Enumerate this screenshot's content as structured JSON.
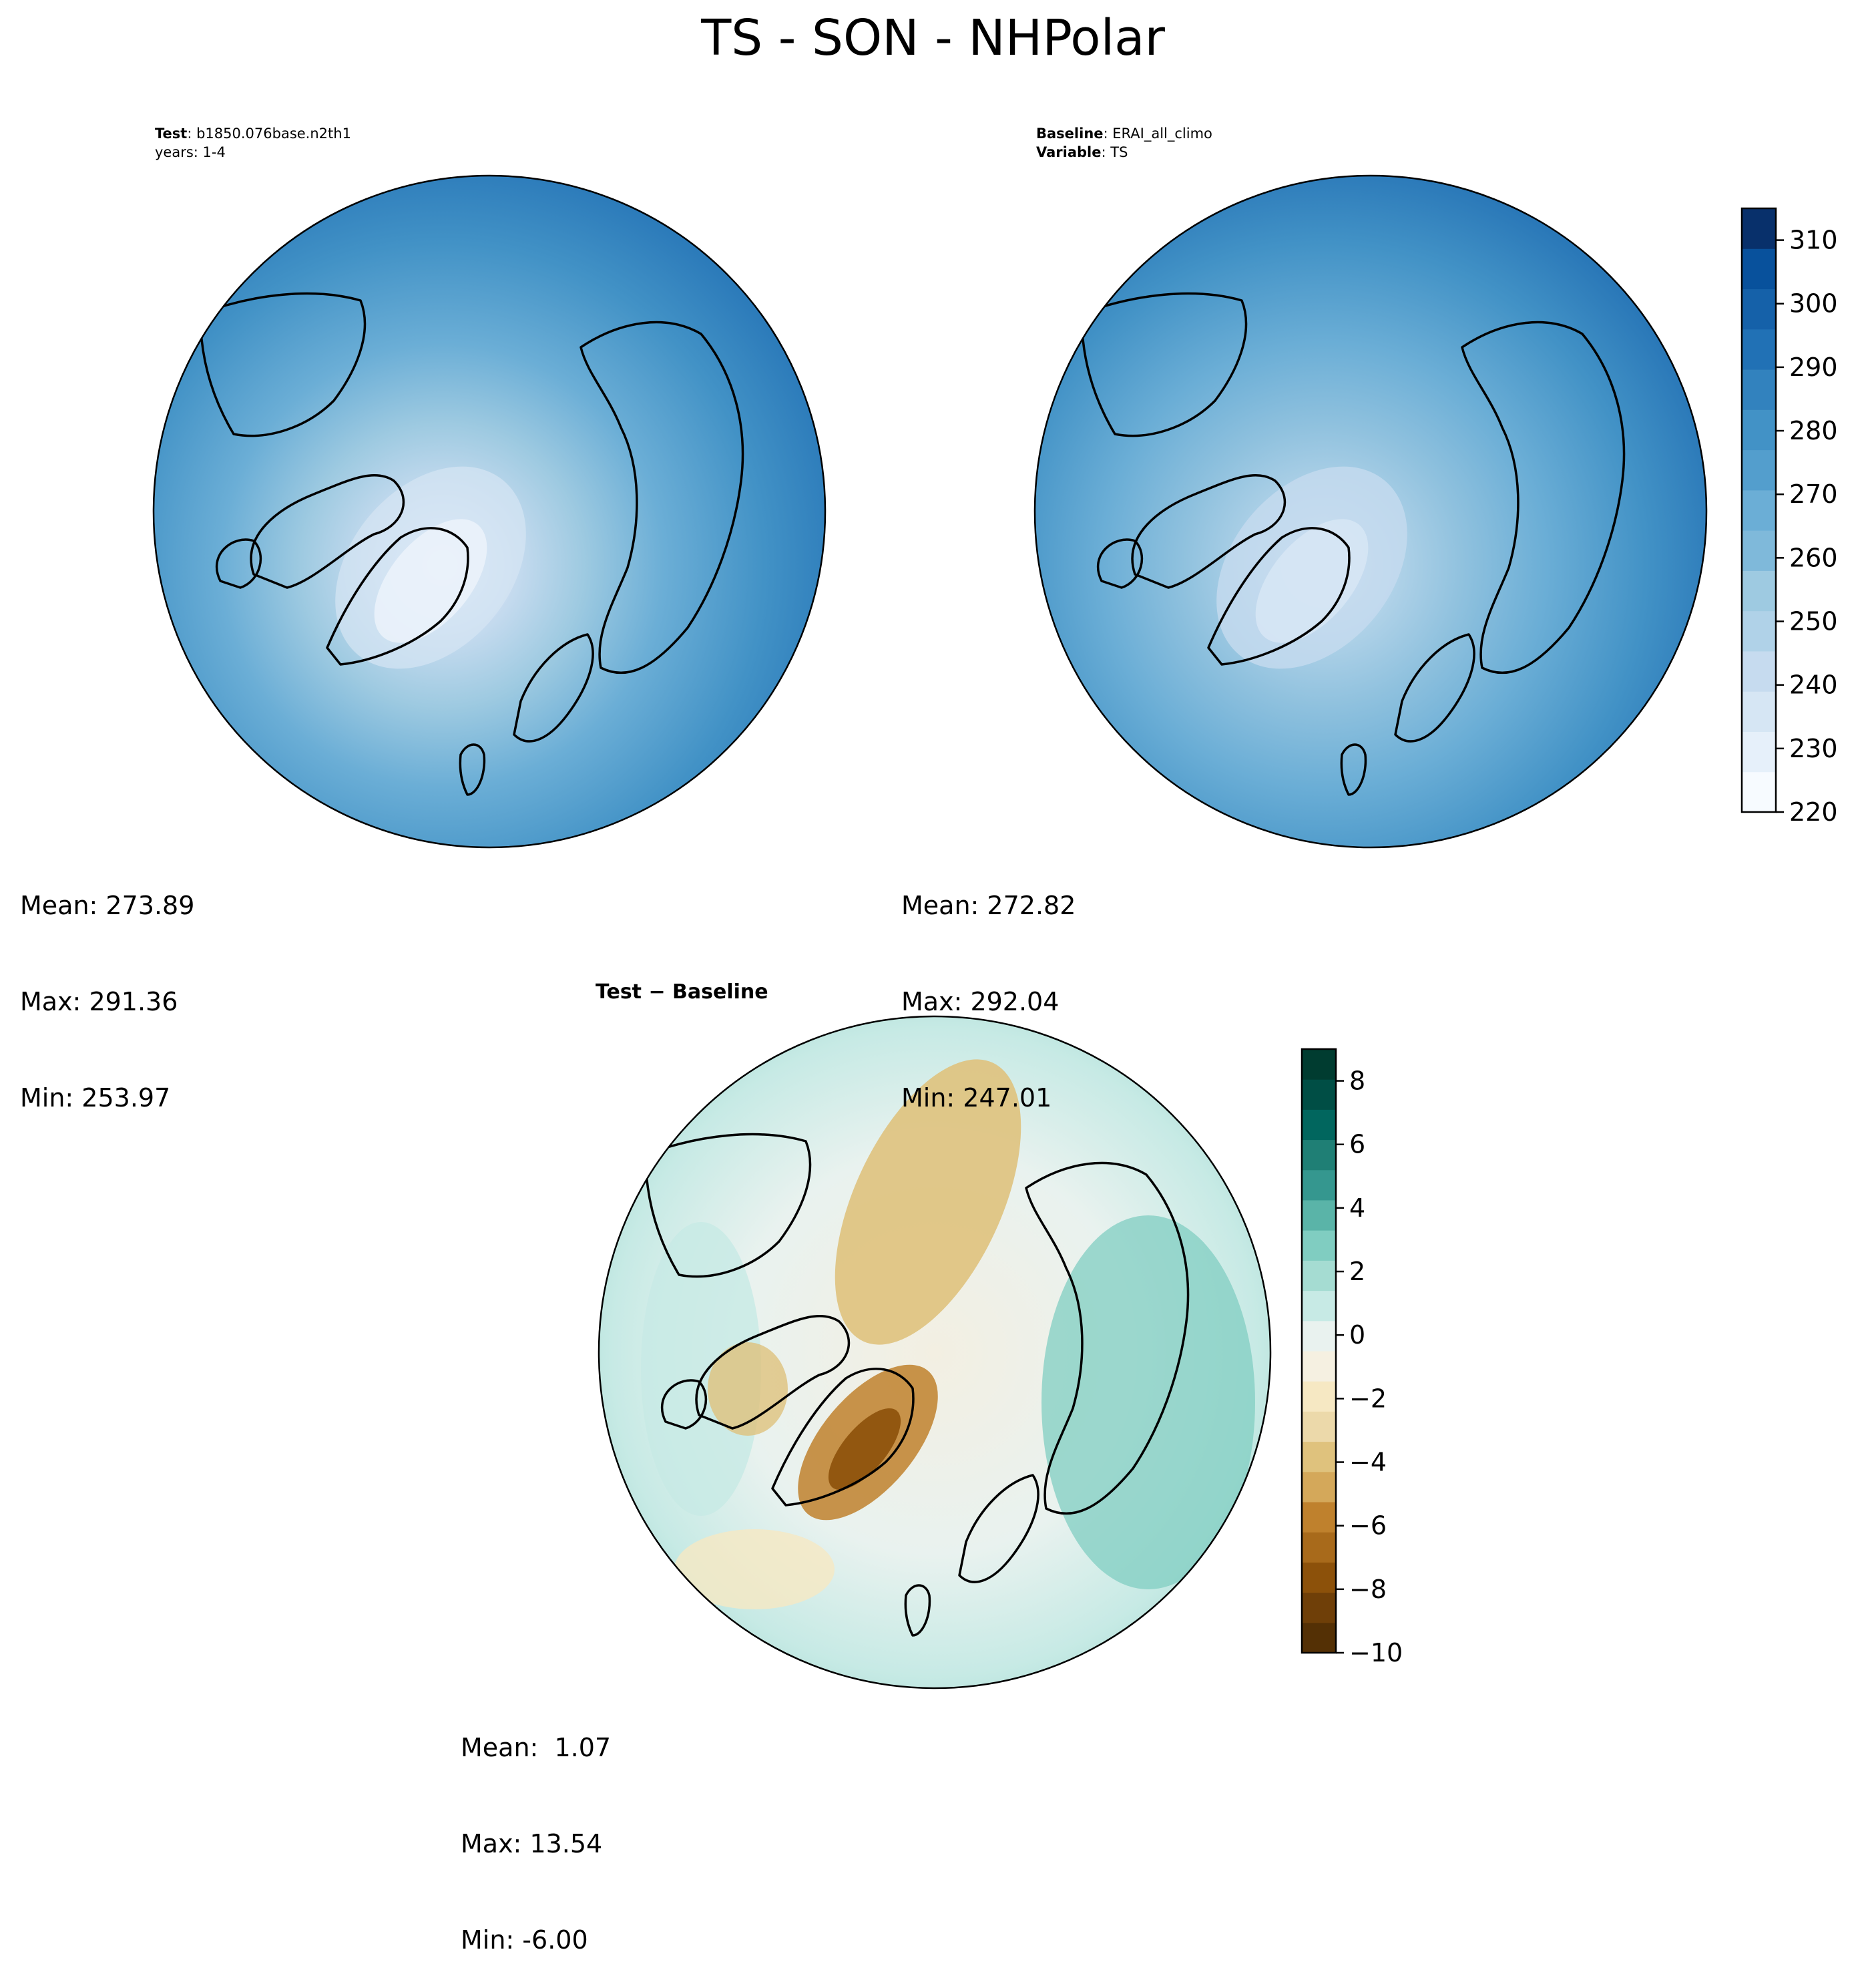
{
  "figure": {
    "title": "TS - SON - NHPolar"
  },
  "panels": {
    "test": {
      "header_label": "Test",
      "header_value": "b1850.076base.n2th1",
      "header_line2": "years: 1-4",
      "stats": {
        "mean": "Mean: 273.89",
        "max": "Max: 291.36",
        "min": "Min: 253.97"
      }
    },
    "baseline": {
      "header_label": "Baseline",
      "header_value": "ERAI_all_climo",
      "header_label2": "Variable",
      "header_value2": "TS",
      "stats": {
        "mean": "Mean: 272.82",
        "max": "Max: 292.04",
        "min": "Min: 247.01"
      }
    },
    "difference": {
      "title": "Test − Baseline",
      "stats": {
        "mean": "Mean:  1.07",
        "max": "Max: 13.54",
        "min": "Min: -6.00"
      }
    }
  },
  "chart_data": [
    {
      "type": "heatmap",
      "title": "Test",
      "projection": "north-polar-stereographic",
      "colormap": "Blues",
      "ticks": [
        220,
        230,
        240,
        250,
        260,
        270,
        280,
        290,
        300,
        310
      ],
      "range": [
        220,
        315
      ],
      "mean": 273.89,
      "max": 291.36,
      "min": 253.97
    },
    {
      "type": "heatmap",
      "title": "Baseline",
      "projection": "north-polar-stereographic",
      "colormap": "Blues",
      "colorbar_ticks": [
        220,
        230,
        240,
        250,
        260,
        270,
        280,
        290,
        300,
        310
      ],
      "colorbar_range": [
        220,
        315
      ],
      "mean": 272.82,
      "max": 292.04,
      "min": 247.01
    },
    {
      "type": "heatmap",
      "title": "Test − Baseline",
      "projection": "north-polar-stereographic",
      "colormap": "BrBG",
      "colorbar_ticks": [
        -10,
        -8,
        -6,
        -4,
        -2,
        0,
        2,
        4,
        6,
        8
      ],
      "colorbar_tick_labels": [
        "−10",
        "−8",
        "−6",
        "−4",
        "−2",
        "0",
        "2",
        "4",
        "6",
        "8"
      ],
      "colorbar_range": [
        -10,
        9
      ],
      "mean": 1.07,
      "max": 13.54,
      "min": -6.0
    }
  ],
  "colors": {
    "blues": [
      "#f7fbff",
      "#e6f0fa",
      "#d6e6f4",
      "#c6dbef",
      "#b0d2e8",
      "#9ecae1",
      "#7fb9da",
      "#6baed6",
      "#539ecd",
      "#4292c6",
      "#3282be",
      "#2171b5",
      "#1561a9",
      "#08519c",
      "#08306b"
    ],
    "brbg": [
      "#543005",
      "#6f3f08",
      "#8c510a",
      "#a86a1b",
      "#bf812d",
      "#d4a85a",
      "#dfc27d",
      "#ecd9aa",
      "#f6e8c3",
      "#f5f0e1",
      "#e9f2ef",
      "#c7eae5",
      "#a5dcd2",
      "#80cdc1",
      "#5ab4a8",
      "#35978f",
      "#1f7f75",
      "#01665e",
      "#004e45",
      "#003c30"
    ]
  }
}
